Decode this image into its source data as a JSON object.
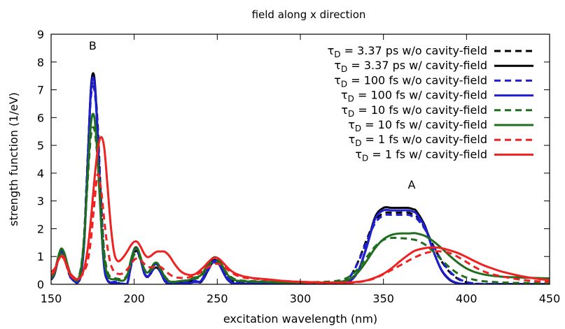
{
  "chart_data": {
    "type": "line",
    "title": "field along x direction",
    "xlabel": "excitation wavelength (nm)",
    "ylabel": "strength function (1/eV)",
    "xlim": [
      150,
      450
    ],
    "ylim": [
      0,
      9
    ],
    "x_ticks": [
      150,
      200,
      250,
      300,
      350,
      400,
      450
    ],
    "y_ticks": [
      0,
      1,
      2,
      3,
      4,
      5,
      6,
      7,
      8,
      9
    ],
    "grid": false,
    "legend_position": "top-right",
    "annotations": [
      {
        "text": "B",
        "x": 175,
        "y": 8.45
      },
      {
        "text": "A",
        "x": 367,
        "y": 3.45
      }
    ],
    "x": [
      150,
      152,
      154,
      156,
      158,
      160,
      162,
      164,
      166,
      168,
      170,
      172,
      174,
      176,
      178,
      180,
      182,
      184,
      186,
      188,
      190,
      192,
      194,
      196,
      198,
      200,
      202,
      204,
      206,
      208,
      210,
      212,
      214,
      216,
      218,
      220,
      222,
      224,
      226,
      228,
      230,
      232,
      234,
      236,
      238,
      240,
      242,
      244,
      246,
      248,
      250,
      252,
      254,
      256,
      258,
      260,
      262,
      264,
      266,
      268,
      270,
      272,
      274,
      276,
      278,
      280,
      285,
      290,
      295,
      300,
      305,
      310,
      315,
      320,
      325,
      330,
      335,
      340,
      345,
      350,
      355,
      360,
      365,
      368,
      370,
      375,
      380,
      385,
      390,
      395,
      400,
      405,
      410,
      415,
      420,
      425,
      430,
      435,
      440,
      445,
      450
    ],
    "series": [
      {
        "name": "3.37 ps w/o cavity-field",
        "label_parts": [
          "τ",
          "D",
          " = 3.37 ps w/o cavity-field"
        ],
        "color": "#000000",
        "style": "dashed",
        "values": [
          0.22,
          0.4,
          0.91,
          1.2,
          0.98,
          0.52,
          0.21,
          0.12,
          0.08,
          0.48,
          1.86,
          4.52,
          6.92,
          7.22,
          5.76,
          3.08,
          1.03,
          0.21,
          0.06,
          0.08,
          0.06,
          0.02,
          0.01,
          0.04,
          0.64,
          1.13,
          1.18,
          0.86,
          0.42,
          0.28,
          0.39,
          0.57,
          0.59,
          0.4,
          0.19,
          0.05,
          0.02,
          0.03,
          0.05,
          0.08,
          0.09,
          0.07,
          0.11,
          0.15,
          0.1,
          0.07,
          0.23,
          0.46,
          0.69,
          0.82,
          0.79,
          0.64,
          0.43,
          0.27,
          0.16,
          0.11,
          0.09,
          0.09,
          0.09,
          0.08,
          0.08,
          0.08,
          0.08,
          0.08,
          0.08,
          0.08,
          0.08,
          0.07,
          0.07,
          0.06,
          0.04,
          0.03,
          0.03,
          0.02,
          0.06,
          0.28,
          0.85,
          1.62,
          2.28,
          2.56,
          2.58,
          2.58,
          2.58,
          2.5,
          2.44,
          2.02,
          1.39,
          0.83,
          0.43,
          0.19,
          0.07,
          0.02,
          0.01,
          0.01,
          0.01,
          0.01,
          0.01,
          0.01,
          0.01,
          0.01,
          0.01
        ]
      },
      {
        "name": "3.37 ps w/ cavity-field",
        "label_parts": [
          "τ",
          "D",
          " = 3.37 ps w/ cavity-field"
        ],
        "color": "#000000",
        "style": "solid",
        "values": [
          0.16,
          0.35,
          0.83,
          1.2,
          1.05,
          0.6,
          0.24,
          0.11,
          0.06,
          0.36,
          1.58,
          4.35,
          7.1,
          7.45,
          5.46,
          2.4,
          0.6,
          0.13,
          0.05,
          0.05,
          0.03,
          0.01,
          0.01,
          0.06,
          0.73,
          1.26,
          1.29,
          0.89,
          0.4,
          0.26,
          0.43,
          0.71,
          0.72,
          0.45,
          0.15,
          0.03,
          0.01,
          0.01,
          0.02,
          0.03,
          0.03,
          0.03,
          0.05,
          0.08,
          0.08,
          0.11,
          0.3,
          0.53,
          0.76,
          0.87,
          0.84,
          0.63,
          0.38,
          0.18,
          0.07,
          0.03,
          0.02,
          0.01,
          0.01,
          0.01,
          0.01,
          0.01,
          0.01,
          0.01,
          0.01,
          0.01,
          0.01,
          0.01,
          0.01,
          0.01,
          0.01,
          0.01,
          0.01,
          0.01,
          0.02,
          0.12,
          0.5,
          1.38,
          2.42,
          2.75,
          2.75,
          2.75,
          2.75,
          2.7,
          2.62,
          2.1,
          1.2,
          0.5,
          0.15,
          0.03,
          0.0,
          0.0,
          0.0,
          0.0,
          0.0,
          0.0,
          0.0,
          0.0,
          0.0,
          0.0,
          0.0
        ]
      },
      {
        "name": "100 fs w/o cavity-field",
        "label_parts": [
          "τ",
          "D",
          " = 100 fs w/o cavity-field"
        ],
        "color": "#1f1fd2",
        "style": "dashed",
        "values": [
          0.22,
          0.4,
          0.91,
          1.19,
          0.97,
          0.52,
          0.22,
          0.13,
          0.1,
          0.5,
          1.85,
          4.44,
          6.76,
          7.0,
          5.56,
          3.0,
          1.05,
          0.25,
          0.08,
          0.09,
          0.07,
          0.03,
          0.02,
          0.05,
          0.62,
          1.1,
          1.15,
          0.84,
          0.42,
          0.29,
          0.4,
          0.57,
          0.59,
          0.41,
          0.2,
          0.07,
          0.03,
          0.03,
          0.05,
          0.08,
          0.09,
          0.07,
          0.1,
          0.14,
          0.1,
          0.08,
          0.22,
          0.44,
          0.66,
          0.78,
          0.76,
          0.62,
          0.43,
          0.28,
          0.17,
          0.12,
          0.1,
          0.1,
          0.1,
          0.09,
          0.09,
          0.09,
          0.09,
          0.09,
          0.09,
          0.08,
          0.08,
          0.07,
          0.07,
          0.06,
          0.05,
          0.04,
          0.03,
          0.03,
          0.07,
          0.29,
          0.82,
          1.55,
          2.2,
          2.48,
          2.5,
          2.5,
          2.5,
          2.43,
          2.37,
          1.98,
          1.4,
          0.86,
          0.46,
          0.21,
          0.08,
          0.03,
          0.01,
          0.01,
          0.01,
          0.01,
          0.01,
          0.01,
          0.01,
          0.01,
          0.01
        ]
      },
      {
        "name": "100 fs w/ cavity-field",
        "label_parts": [
          "τ",
          "D",
          " = 100 fs w/ cavity-field"
        ],
        "color": "#1f1fd2",
        "style": "solid",
        "values": [
          0.17,
          0.36,
          0.83,
          1.18,
          1.03,
          0.6,
          0.25,
          0.12,
          0.07,
          0.37,
          1.58,
          4.3,
          6.98,
          7.3,
          5.35,
          2.38,
          0.62,
          0.15,
          0.06,
          0.06,
          0.04,
          0.02,
          0.01,
          0.06,
          0.71,
          1.23,
          1.26,
          0.87,
          0.4,
          0.27,
          0.43,
          0.69,
          0.7,
          0.44,
          0.16,
          0.04,
          0.01,
          0.01,
          0.02,
          0.03,
          0.03,
          0.03,
          0.05,
          0.08,
          0.08,
          0.11,
          0.29,
          0.51,
          0.73,
          0.84,
          0.82,
          0.62,
          0.38,
          0.19,
          0.08,
          0.04,
          0.02,
          0.02,
          0.02,
          0.02,
          0.02,
          0.02,
          0.02,
          0.02,
          0.02,
          0.02,
          0.02,
          0.02,
          0.02,
          0.02,
          0.02,
          0.02,
          0.02,
          0.02,
          0.03,
          0.13,
          0.5,
          1.35,
          2.35,
          2.66,
          2.66,
          2.66,
          2.66,
          2.61,
          2.53,
          2.05,
          1.2,
          0.52,
          0.17,
          0.04,
          0.01,
          0.0,
          0.0,
          0.0,
          0.0,
          0.0,
          0.0,
          0.0,
          0.0,
          0.0,
          0.0
        ]
      },
      {
        "name": "10 fs w/o cavity-field",
        "label_parts": [
          "τ",
          "D",
          " = 10 fs w/o cavity-field"
        ],
        "color": "#1f6e1f",
        "style": "dashed",
        "values": [
          0.26,
          0.42,
          0.86,
          1.09,
          0.92,
          0.55,
          0.28,
          0.2,
          0.22,
          0.62,
          1.78,
          3.72,
          5.35,
          5.58,
          4.47,
          2.6,
          1.12,
          0.45,
          0.25,
          0.22,
          0.2,
          0.18,
          0.2,
          0.37,
          0.76,
          1.06,
          1.08,
          0.86,
          0.56,
          0.44,
          0.5,
          0.62,
          0.64,
          0.51,
          0.32,
          0.18,
          0.11,
          0.09,
          0.1,
          0.12,
          0.13,
          0.14,
          0.17,
          0.2,
          0.22,
          0.28,
          0.42,
          0.6,
          0.76,
          0.84,
          0.82,
          0.71,
          0.55,
          0.4,
          0.28,
          0.2,
          0.16,
          0.14,
          0.13,
          0.12,
          0.12,
          0.11,
          0.11,
          0.11,
          0.11,
          0.1,
          0.1,
          0.09,
          0.09,
          0.08,
          0.08,
          0.08,
          0.09,
          0.11,
          0.16,
          0.3,
          0.58,
          0.98,
          1.36,
          1.6,
          1.67,
          1.66,
          1.64,
          1.61,
          1.58,
          1.43,
          1.18,
          0.88,
          0.6,
          0.38,
          0.24,
          0.16,
          0.11,
          0.09,
          0.07,
          0.06,
          0.05,
          0.05,
          0.05,
          0.05,
          0.05
        ]
      },
      {
        "name": "10 fs w/ cavity-field",
        "label_parts": [
          "τ",
          "D",
          " = 10 fs w/ cavity-field"
        ],
        "color": "#1f6e1f",
        "style": "solid",
        "values": [
          0.22,
          0.4,
          0.92,
          1.28,
          1.12,
          0.68,
          0.32,
          0.18,
          0.15,
          0.55,
          1.72,
          3.9,
          5.8,
          6.02,
          4.55,
          2.3,
          0.86,
          0.32,
          0.19,
          0.18,
          0.16,
          0.13,
          0.15,
          0.34,
          0.87,
          1.25,
          1.28,
          0.95,
          0.55,
          0.42,
          0.56,
          0.75,
          0.76,
          0.56,
          0.3,
          0.15,
          0.09,
          0.08,
          0.1,
          0.12,
          0.13,
          0.14,
          0.18,
          0.24,
          0.26,
          0.32,
          0.48,
          0.68,
          0.87,
          0.97,
          0.95,
          0.79,
          0.56,
          0.36,
          0.23,
          0.16,
          0.13,
          0.12,
          0.11,
          0.1,
          0.1,
          0.09,
          0.09,
          0.09,
          0.09,
          0.08,
          0.07,
          0.06,
          0.06,
          0.06,
          0.06,
          0.06,
          0.06,
          0.07,
          0.1,
          0.2,
          0.45,
          0.85,
          1.3,
          1.62,
          1.78,
          1.83,
          1.83,
          1.84,
          1.83,
          1.74,
          1.55,
          1.3,
          1.02,
          0.77,
          0.57,
          0.44,
          0.36,
          0.31,
          0.28,
          0.26,
          0.25,
          0.24,
          0.23,
          0.22,
          0.21
        ]
      },
      {
        "name": "1 fs w/o cavity-field",
        "label_parts": [
          "τ",
          "D",
          " = 1 fs w/o cavity-field"
        ],
        "color": "#ee2222",
        "style": "dashed",
        "values": [
          0.45,
          0.55,
          0.82,
          1.05,
          0.95,
          0.62,
          0.36,
          0.24,
          0.2,
          0.28,
          0.48,
          0.82,
          1.62,
          2.9,
          3.95,
          3.45,
          2.3,
          1.3,
          0.7,
          0.45,
          0.38,
          0.37,
          0.42,
          0.55,
          0.72,
          0.88,
          0.93,
          0.87,
          0.74,
          0.64,
          0.61,
          0.62,
          0.64,
          0.62,
          0.53,
          0.42,
          0.33,
          0.27,
          0.24,
          0.23,
          0.23,
          0.24,
          0.27,
          0.31,
          0.36,
          0.43,
          0.52,
          0.6,
          0.67,
          0.72,
          0.74,
          0.71,
          0.64,
          0.54,
          0.45,
          0.37,
          0.31,
          0.27,
          0.24,
          0.22,
          0.21,
          0.2,
          0.19,
          0.18,
          0.17,
          0.16,
          0.14,
          0.12,
          0.1,
          0.08,
          0.06,
          0.05,
          0.04,
          0.04,
          0.04,
          0.05,
          0.08,
          0.13,
          0.22,
          0.36,
          0.52,
          0.68,
          0.85,
          0.94,
          1.0,
          1.12,
          1.18,
          1.18,
          1.12,
          0.98,
          0.8,
          0.62,
          0.47,
          0.37,
          0.3,
          0.24,
          0.19,
          0.15,
          0.12,
          0.1,
          0.09
        ]
      },
      {
        "name": "1 fs w/ cavity-field",
        "label_parts": [
          "τ",
          "D",
          " = 1 fs w/ cavity-field"
        ],
        "color": "#ee2222",
        "style": "solid",
        "values": [
          0.32,
          0.48,
          0.82,
          1.0,
          0.88,
          0.55,
          0.3,
          0.2,
          0.18,
          0.28,
          0.6,
          1.26,
          2.36,
          3.72,
          4.82,
          5.3,
          4.9,
          3.5,
          2.05,
          1.12,
          0.84,
          0.88,
          1.02,
          1.2,
          1.4,
          1.53,
          1.52,
          1.34,
          1.1,
          0.98,
          1.02,
          1.12,
          1.18,
          1.18,
          1.18,
          1.1,
          0.95,
          0.76,
          0.6,
          0.47,
          0.39,
          0.35,
          0.33,
          0.35,
          0.42,
          0.52,
          0.63,
          0.76,
          0.88,
          0.95,
          0.95,
          0.87,
          0.74,
          0.61,
          0.5,
          0.42,
          0.36,
          0.32,
          0.28,
          0.26,
          0.24,
          0.22,
          0.21,
          0.2,
          0.19,
          0.18,
          0.15,
          0.12,
          0.1,
          0.09,
          0.08,
          0.07,
          0.06,
          0.06,
          0.06,
          0.07,
          0.09,
          0.14,
          0.24,
          0.38,
          0.58,
          0.83,
          1.06,
          1.18,
          1.23,
          1.3,
          1.33,
          1.3,
          1.22,
          1.12,
          0.98,
          0.83,
          0.69,
          0.58,
          0.48,
          0.4,
          0.33,
          0.27,
          0.22,
          0.18,
          0.15
        ]
      }
    ]
  }
}
